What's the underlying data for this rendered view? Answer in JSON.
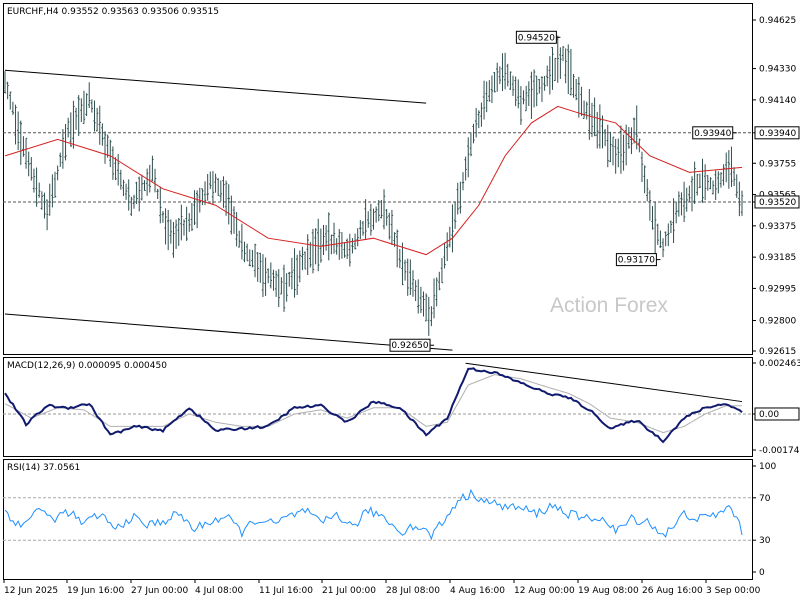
{
  "chart_data": [
    {
      "type": "candlestick",
      "symbol_label": "EURCHF,H4",
      "ohlc_label": "0.93552 0.93563 0.93506 0.93515",
      "watermark": "Action Forex",
      "ylim": [
        0.92615,
        0.94625
      ],
      "y_ticks": [
        "0.94625",
        "0.94330",
        "0.94140",
        "0.93940",
        "0.93755",
        "0.93565",
        "0.93520",
        "0.93375",
        "0.93185",
        "0.92995",
        "0.92800",
        "0.92615"
      ],
      "highlight_ticks": [
        "0.93940",
        "0.93520"
      ],
      "x_ticks": [
        "12 Jun 2025",
        "19 Jun 16:00",
        "27 Jun 00:00",
        "4 Jul 08:00",
        "11 Jul 16:00",
        "21 Jul 00:00",
        "28 Jul 08:00",
        "4 Aug 16:00",
        "12 Aug 00:00",
        "19 Aug 08:00",
        "26 Aug 16:00",
        "3 Sep 00:00"
      ],
      "levels": [
        0.9394,
        0.9352
      ],
      "annotations": [
        {
          "text": "0.94520",
          "value": 0.9452,
          "index": 211
        },
        {
          "text": "0.93940",
          "value": 0.9394,
          "index": 278
        },
        {
          "text": "0.93170",
          "value": 0.9317,
          "index": 249
        },
        {
          "text": "0.92650",
          "value": 0.9265,
          "index": 163
        }
      ],
      "trendlines": [
        {
          "from": [
            0,
            0.9432
          ],
          "to": [
            160,
            0.9412
          ]
        },
        {
          "from": [
            0,
            0.9284
          ],
          "to": [
            170,
            0.9262
          ]
        }
      ],
      "price_path": [
        [
          0,
          0.9425
        ],
        [
          8,
          0.938
        ],
        [
          16,
          0.9345
        ],
        [
          24,
          0.9395
        ],
        [
          32,
          0.9415
        ],
        [
          40,
          0.938
        ],
        [
          48,
          0.935
        ],
        [
          56,
          0.937
        ],
        [
          62,
          0.933
        ],
        [
          70,
          0.934
        ],
        [
          78,
          0.9365
        ],
        [
          84,
          0.9355
        ],
        [
          90,
          0.9325
        ],
        [
          98,
          0.9308
        ],
        [
          106,
          0.93
        ],
        [
          114,
          0.9318
        ],
        [
          122,
          0.933
        ],
        [
          130,
          0.9322
        ],
        [
          138,
          0.934
        ],
        [
          144,
          0.9348
        ],
        [
          150,
          0.9318
        ],
        [
          156,
          0.93
        ],
        [
          162,
          0.9282
        ],
        [
          166,
          0.931
        ],
        [
          172,
          0.935
        ],
        [
          178,
          0.9395
        ],
        [
          184,
          0.942
        ],
        [
          190,
          0.9432
        ],
        [
          196,
          0.9415
        ],
        [
          204,
          0.9422
        ],
        [
          212,
          0.9442
        ],
        [
          218,
          0.9415
        ],
        [
          226,
          0.9395
        ],
        [
          232,
          0.938
        ],
        [
          240,
          0.9395
        ],
        [
          246,
          0.934
        ],
        [
          250,
          0.9325
        ],
        [
          256,
          0.9348
        ],
        [
          264,
          0.9365
        ],
        [
          270,
          0.9362
        ],
        [
          276,
          0.9375
        ],
        [
          280,
          0.935
        ]
      ],
      "ma_path": [
        [
          0,
          0.938
        ],
        [
          20,
          0.939
        ],
        [
          40,
          0.938
        ],
        [
          60,
          0.936
        ],
        [
          80,
          0.935
        ],
        [
          100,
          0.933
        ],
        [
          120,
          0.9325
        ],
        [
          140,
          0.933
        ],
        [
          160,
          0.932
        ],
        [
          170,
          0.933
        ],
        [
          180,
          0.935
        ],
        [
          190,
          0.938
        ],
        [
          200,
          0.94
        ],
        [
          210,
          0.941
        ],
        [
          220,
          0.9405
        ],
        [
          232,
          0.94
        ],
        [
          245,
          0.938
        ],
        [
          260,
          0.937
        ],
        [
          280,
          0.9373
        ]
      ]
    },
    {
      "type": "line",
      "label": "MACD(12,26,9) 0.000095 0.000450",
      "ylim": [
        -0.00174,
        0.002463
      ],
      "y_ticks": [
        "0.002463",
        "0.00",
        "-0.00174"
      ],
      "highlight_ticks": [
        "0.00"
      ],
      "trendline": {
        "from": [
          175,
          0.00245
        ],
        "to": [
          280,
          0.0006
        ]
      },
      "macd_path": [
        [
          0,
          0.001
        ],
        [
          8,
          -0.0005
        ],
        [
          16,
          0.0004
        ],
        [
          24,
          0.0003
        ],
        [
          32,
          0.0005
        ],
        [
          40,
          -0.001
        ],
        [
          50,
          -0.0006
        ],
        [
          60,
          -0.0008
        ],
        [
          70,
          0.0003
        ],
        [
          80,
          -0.0008
        ],
        [
          90,
          -0.0007
        ],
        [
          100,
          -0.0006
        ],
        [
          110,
          0.0003
        ],
        [
          120,
          0.0004
        ],
        [
          130,
          -0.0004
        ],
        [
          140,
          0.0006
        ],
        [
          150,
          0.0003
        ],
        [
          160,
          -0.001
        ],
        [
          168,
          -0.0002
        ],
        [
          176,
          0.0022
        ],
        [
          186,
          0.002
        ],
        [
          196,
          0.0015
        ],
        [
          206,
          0.001
        ],
        [
          214,
          0.0008
        ],
        [
          222,
          0.0002
        ],
        [
          230,
          -0.0007
        ],
        [
          240,
          -0.0003
        ],
        [
          250,
          -0.0013
        ],
        [
          258,
          -0.0002
        ],
        [
          266,
          0.0003
        ],
        [
          274,
          0.0005
        ],
        [
          280,
          0.0001
        ]
      ],
      "signal_path": [
        [
          0,
          0.0005
        ],
        [
          10,
          -0.0002
        ],
        [
          20,
          0.0003
        ],
        [
          30,
          0.0002
        ],
        [
          40,
          -0.0006
        ],
        [
          50,
          -0.0006
        ],
        [
          60,
          -0.0006
        ],
        [
          70,
          0.0
        ],
        [
          80,
          -0.0004
        ],
        [
          90,
          -0.0006
        ],
        [
          100,
          -0.0006
        ],
        [
          110,
          0.0
        ],
        [
          120,
          0.0002
        ],
        [
          130,
          -0.0002
        ],
        [
          140,
          0.0003
        ],
        [
          150,
          0.0003
        ],
        [
          160,
          -0.0006
        ],
        [
          168,
          -0.0004
        ],
        [
          176,
          0.0014
        ],
        [
          186,
          0.0019
        ],
        [
          196,
          0.0017
        ],
        [
          206,
          0.0013
        ],
        [
          214,
          0.001
        ],
        [
          222,
          0.0005
        ],
        [
          230,
          -0.0002
        ],
        [
          240,
          -0.0004
        ],
        [
          250,
          -0.0009
        ],
        [
          258,
          -0.0006
        ],
        [
          266,
          0.0
        ],
        [
          274,
          0.0004
        ],
        [
          280,
          0.0004
        ]
      ]
    },
    {
      "type": "line",
      "label": "RSI(14) 37.0561",
      "ylim": [
        0,
        100
      ],
      "y_ticks": [
        "100",
        "70",
        "30",
        "0"
      ],
      "levels": [
        70,
        30
      ],
      "rsi_path": [
        [
          0,
          58
        ],
        [
          6,
          42
        ],
        [
          12,
          60
        ],
        [
          18,
          50
        ],
        [
          24,
          57
        ],
        [
          30,
          45
        ],
        [
          36,
          55
        ],
        [
          42,
          40
        ],
        [
          48,
          52
        ],
        [
          54,
          44
        ],
        [
          60,
          48
        ],
        [
          66,
          55
        ],
        [
          72,
          40
        ],
        [
          78,
          48
        ],
        [
          84,
          52
        ],
        [
          90,
          38
        ],
        [
          96,
          50
        ],
        [
          102,
          45
        ],
        [
          108,
          52
        ],
        [
          114,
          58
        ],
        [
          120,
          45
        ],
        [
          126,
          55
        ],
        [
          132,
          42
        ],
        [
          138,
          58
        ],
        [
          144,
          52
        ],
        [
          150,
          38
        ],
        [
          156,
          44
        ],
        [
          162,
          35
        ],
        [
          168,
          52
        ],
        [
          172,
          68
        ],
        [
          178,
          74
        ],
        [
          184,
          65
        ],
        [
          190,
          62
        ],
        [
          196,
          60
        ],
        [
          202,
          55
        ],
        [
          208,
          63
        ],
        [
          214,
          55
        ],
        [
          220,
          50
        ],
        [
          226,
          52
        ],
        [
          232,
          38
        ],
        [
          238,
          50
        ],
        [
          244,
          48
        ],
        [
          250,
          35
        ],
        [
          254,
          42
        ],
        [
          258,
          55
        ],
        [
          264,
          50
        ],
        [
          270,
          54
        ],
        [
          276,
          62
        ],
        [
          280,
          37
        ]
      ]
    }
  ]
}
